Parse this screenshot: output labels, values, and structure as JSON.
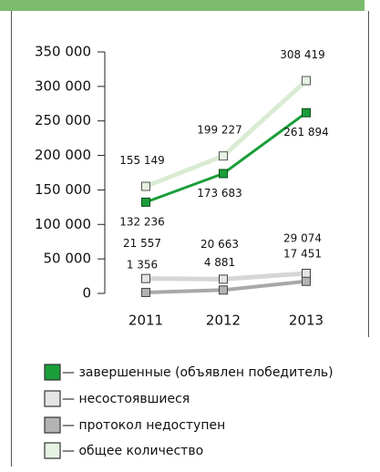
{
  "chart_data": {
    "type": "line",
    "categories": [
      "2011",
      "2012",
      "2013"
    ],
    "series": [
      {
        "name": "— завершенные (объявлен победитель)",
        "color": "#1a9e3a",
        "values": [
          132236,
          173683,
          261894
        ],
        "value_labels": [
          "132 236",
          "173 683",
          "261 894"
        ]
      },
      {
        "name": "— несостоявшиеся",
        "color": "#e4e4e4",
        "values": [
          21557,
          20663,
          29074
        ],
        "value_labels": [
          "21 557",
          "20 663",
          "29 074"
        ]
      },
      {
        "name": "— протокол недоступен",
        "color": "#b3b3b3",
        "values": [
          1356,
          4881,
          17451
        ],
        "value_labels": [
          "1 356",
          "4 881",
          "17 451"
        ]
      },
      {
        "name": "— общее количество",
        "color": "#e6f2e2",
        "values": [
          155149,
          199227,
          308419
        ],
        "value_labels": [
          "155 149",
          "199 227",
          "308 419"
        ]
      }
    ],
    "ylim": [
      0,
      350000
    ],
    "yticks": [
      0,
      {
        "value": 50000,
        "label": "50 000"
      },
      {
        "value": 100000,
        "label": "100 000"
      },
      {
        "value": 150000,
        "label": "150 000"
      },
      {
        "value": 200000,
        "label": "200 000"
      },
      {
        "value": 250000,
        "label": "250 000"
      },
      {
        "value": 300000,
        "label": "300 000"
      },
      {
        "value": 350000,
        "label": "350 000"
      }
    ],
    "legend": "bottom"
  }
}
